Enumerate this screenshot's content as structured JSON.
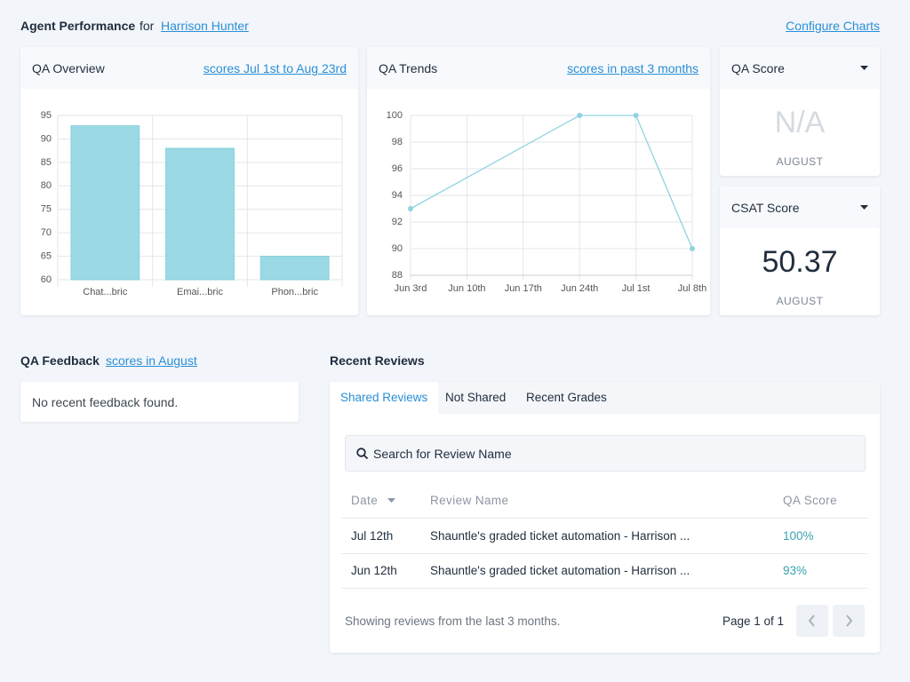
{
  "header": {
    "title": "Agent Performance",
    "for": "for",
    "agent": "Harrison Hunter",
    "configure": "Configure Charts"
  },
  "qa_overview": {
    "title": "QA Overview",
    "range_link": "scores Jul 1st to Aug 23rd",
    "chart": {
      "type": "bar",
      "categories": [
        "Chat...bric",
        "Emai...bric",
        "Phon...bric"
      ],
      "values": [
        92.8,
        88,
        65
      ],
      "color": "#9bd9e4",
      "ylim": [
        60,
        95
      ],
      "yticks": [
        60,
        65,
        70,
        75,
        80,
        85,
        90,
        95
      ],
      "grid": true
    }
  },
  "qa_trends": {
    "title": "QA Trends",
    "range_link": "scores in past 3 months",
    "chart": {
      "type": "line",
      "xticks": [
        "Jun 3rd",
        "Jun 10th",
        "Jun 17th",
        "Jun 24th",
        "Jul 1st",
        "Jul 8th"
      ],
      "x": [
        "Jun 3rd",
        "Jun 24th",
        "Jul 1st",
        "Jul 8th"
      ],
      "values": [
        93,
        100,
        100,
        90
      ],
      "color": "#8fd3df",
      "ylim": [
        88,
        100
      ],
      "yticks": [
        88,
        90,
        92,
        94,
        96,
        98,
        100
      ],
      "grid": true
    }
  },
  "qa_score": {
    "title": "QA Score",
    "value": "N/A",
    "period": "AUGUST"
  },
  "csat_score": {
    "title": "CSAT Score",
    "value": 50.37,
    "period": "AUGUST"
  },
  "qa_feedback": {
    "title": "QA Feedback",
    "link": "scores in August",
    "empty": "No recent feedback found."
  },
  "recent_reviews": {
    "title": "Recent Reviews",
    "tabs": [
      "Shared Reviews",
      "Not Shared",
      "Recent Grades"
    ],
    "search_placeholder": "Search for Review Name",
    "table": {
      "columns": [
        "Date",
        "Review Name",
        "QA Score"
      ],
      "rows": [
        [
          "Jul 12th",
          "Shauntle's graded ticket automation - Harrison ...",
          "100%"
        ],
        [
          "Jun 12th",
          "Shauntle's graded ticket automation - Harrison ...",
          "93%"
        ]
      ]
    },
    "footer": "Showing reviews from the last 3 months.",
    "pagination": "Page 1 of 1"
  }
}
